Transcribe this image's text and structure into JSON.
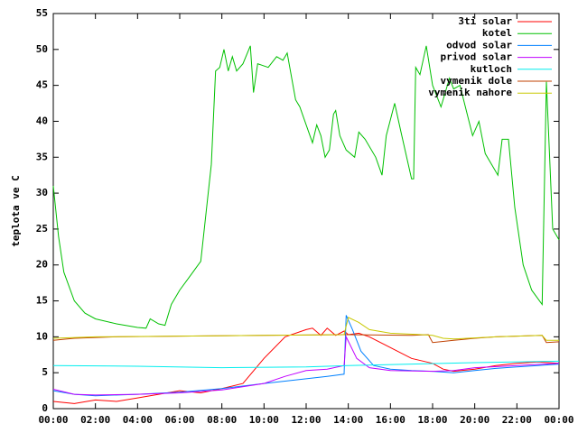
{
  "chart_data": {
    "type": "line",
    "ylabel": "teplota ve C",
    "xlim": [
      0,
      24
    ],
    "ylim": [
      0,
      55
    ],
    "xticks": [
      {
        "value": 0,
        "label": "00:00"
      },
      {
        "value": 2,
        "label": "02:00"
      },
      {
        "value": 4,
        "label": "04:00"
      },
      {
        "value": 6,
        "label": "06:00"
      },
      {
        "value": 8,
        "label": "08:00"
      },
      {
        "value": 10,
        "label": "10:00"
      },
      {
        "value": 12,
        "label": "12:00"
      },
      {
        "value": 14,
        "label": "14:00"
      },
      {
        "value": 16,
        "label": "16:00"
      },
      {
        "value": 18,
        "label": "18:00"
      },
      {
        "value": 20,
        "label": "20:00"
      },
      {
        "value": 22,
        "label": "22:00"
      },
      {
        "value": 24,
        "label": "00:00"
      }
    ],
    "yticks": [
      0,
      5,
      10,
      15,
      20,
      25,
      30,
      35,
      40,
      45,
      50,
      55
    ],
    "grid": false,
    "legend": "top-right",
    "series": [
      {
        "name": "3ti solar",
        "color": "#ff0000",
        "x": [
          0,
          1,
          2,
          3,
          4,
          5,
          6,
          7,
          8,
          9,
          10,
          11,
          12,
          12.3,
          12.7,
          13,
          13.4,
          13.8,
          14,
          14.5,
          15,
          16,
          17,
          18,
          18.5,
          19,
          20,
          21,
          22,
          23,
          24
        ],
        "values": [
          1,
          0.7,
          1.2,
          1,
          1.5,
          2,
          2.5,
          2.2,
          2.8,
          3.5,
          7,
          10,
          11,
          11.2,
          10.2,
          11.2,
          10.2,
          10.8,
          10.3,
          10.5,
          10,
          8.5,
          7,
          6.3,
          5.5,
          5.2,
          5.5,
          6,
          6.3,
          6.5,
          6.3
        ]
      },
      {
        "name": "kotel",
        "color": "#00c000",
        "x": [
          0,
          0.25,
          0.5,
          1,
          1.5,
          2,
          3,
          4,
          4.4,
          4.6,
          5,
          5.3,
          5.6,
          6,
          6.5,
          7,
          7.5,
          7.7,
          7.9,
          8.1,
          8.3,
          8.5,
          8.7,
          9,
          9.35,
          9.5,
          9.7,
          10.2,
          10.6,
          10.9,
          11.1,
          11.5,
          11.7,
          12.3,
          12.5,
          12.7,
          12.9,
          13.1,
          13.3,
          13.4,
          13.6,
          13.9,
          14.3,
          14.5,
          14.8,
          15.3,
          15.6,
          15.8,
          16.2,
          16.5,
          17,
          17.1,
          17.2,
          17.4,
          17.7,
          18,
          18.4,
          18.8,
          19,
          19.3,
          19.9,
          20.2,
          20.5,
          21,
          21.1,
          21.3,
          21.6,
          21.9,
          22.3,
          22.7,
          23.2,
          23.4,
          23.7,
          24
        ],
        "values": [
          31,
          24,
          19,
          15,
          13.3,
          12.5,
          11.8,
          11.3,
          11.2,
          12.5,
          11.8,
          11.6,
          14.5,
          16.5,
          18.5,
          20.5,
          34,
          47,
          47.5,
          50,
          47,
          49,
          47,
          48,
          50.5,
          44,
          48,
          47.5,
          49,
          48.5,
          49.5,
          43,
          42,
          37,
          39.5,
          38,
          35,
          36,
          41,
          41.5,
          38,
          36,
          35,
          38.5,
          37.5,
          35,
          32.5,
          38,
          42.5,
          38.5,
          32,
          32,
          47.5,
          46.5,
          50.5,
          45,
          42,
          46,
          44.5,
          45,
          38,
          40,
          35.5,
          33,
          32.5,
          37.5,
          37.5,
          28,
          20,
          16.5,
          14.5,
          45.5,
          25,
          23.5
        ]
      },
      {
        "name": "odvod solar",
        "color": "#0080ff",
        "x": [
          0,
          1,
          2,
          4,
          6,
          8,
          10,
          13,
          13.8,
          13.9,
          14.2,
          14.6,
          15.2,
          16,
          17,
          18,
          19,
          20,
          21,
          22,
          23,
          24
        ],
        "values": [
          2.5,
          2,
          1.8,
          2,
          2.3,
          2.8,
          3.5,
          4.5,
          4.8,
          13,
          11,
          8,
          6,
          5.5,
          5.3,
          5.2,
          5,
          5.3,
          5.6,
          5.8,
          6,
          6.2
        ]
      },
      {
        "name": "privod solar",
        "color": "#c000ff",
        "x": [
          0,
          1,
          2,
          4,
          6,
          8,
          10,
          11,
          12,
          13,
          13.8,
          13.9,
          14.4,
          15,
          16,
          18,
          19,
          20,
          22,
          24
        ],
        "values": [
          2.7,
          2,
          1.9,
          2,
          2.2,
          2.6,
          3.5,
          4.5,
          5.3,
          5.5,
          6,
          10,
          7,
          5.7,
          5.3,
          5.2,
          5.3,
          5.7,
          6,
          6.3
        ]
      },
      {
        "name": "kutloch",
        "color": "#00eeee",
        "x": [
          0,
          4,
          8,
          12,
          14,
          17,
          20,
          24
        ],
        "values": [
          6,
          5.9,
          5.7,
          5.8,
          6,
          6.2,
          6.4,
          6.6
        ]
      },
      {
        "name": "vymenik dole",
        "color": "#c04000",
        "x": [
          0,
          1,
          3,
          6,
          10,
          14,
          17,
          17.8,
          18,
          19,
          20,
          21,
          23.2,
          23.4,
          24
        ],
        "values": [
          9.5,
          9.8,
          10,
          10.1,
          10.2,
          10.3,
          10.2,
          10.3,
          9.2,
          9.5,
          9.8,
          10,
          10.2,
          9.2,
          9.3
        ]
      },
      {
        "name": "vymenik nahore",
        "color": "#c8c800",
        "x": [
          0,
          2,
          6,
          10,
          13.8,
          14,
          14.5,
          15,
          16,
          17.5,
          18,
          18.5,
          19,
          21,
          23.2,
          23.4,
          24
        ],
        "values": [
          9.8,
          10,
          10.1,
          10.2,
          10.3,
          12.7,
          12,
          11,
          10.5,
          10.3,
          10.2,
          9.8,
          9.7,
          10,
          10.2,
          9.5,
          9.5
        ]
      }
    ]
  }
}
